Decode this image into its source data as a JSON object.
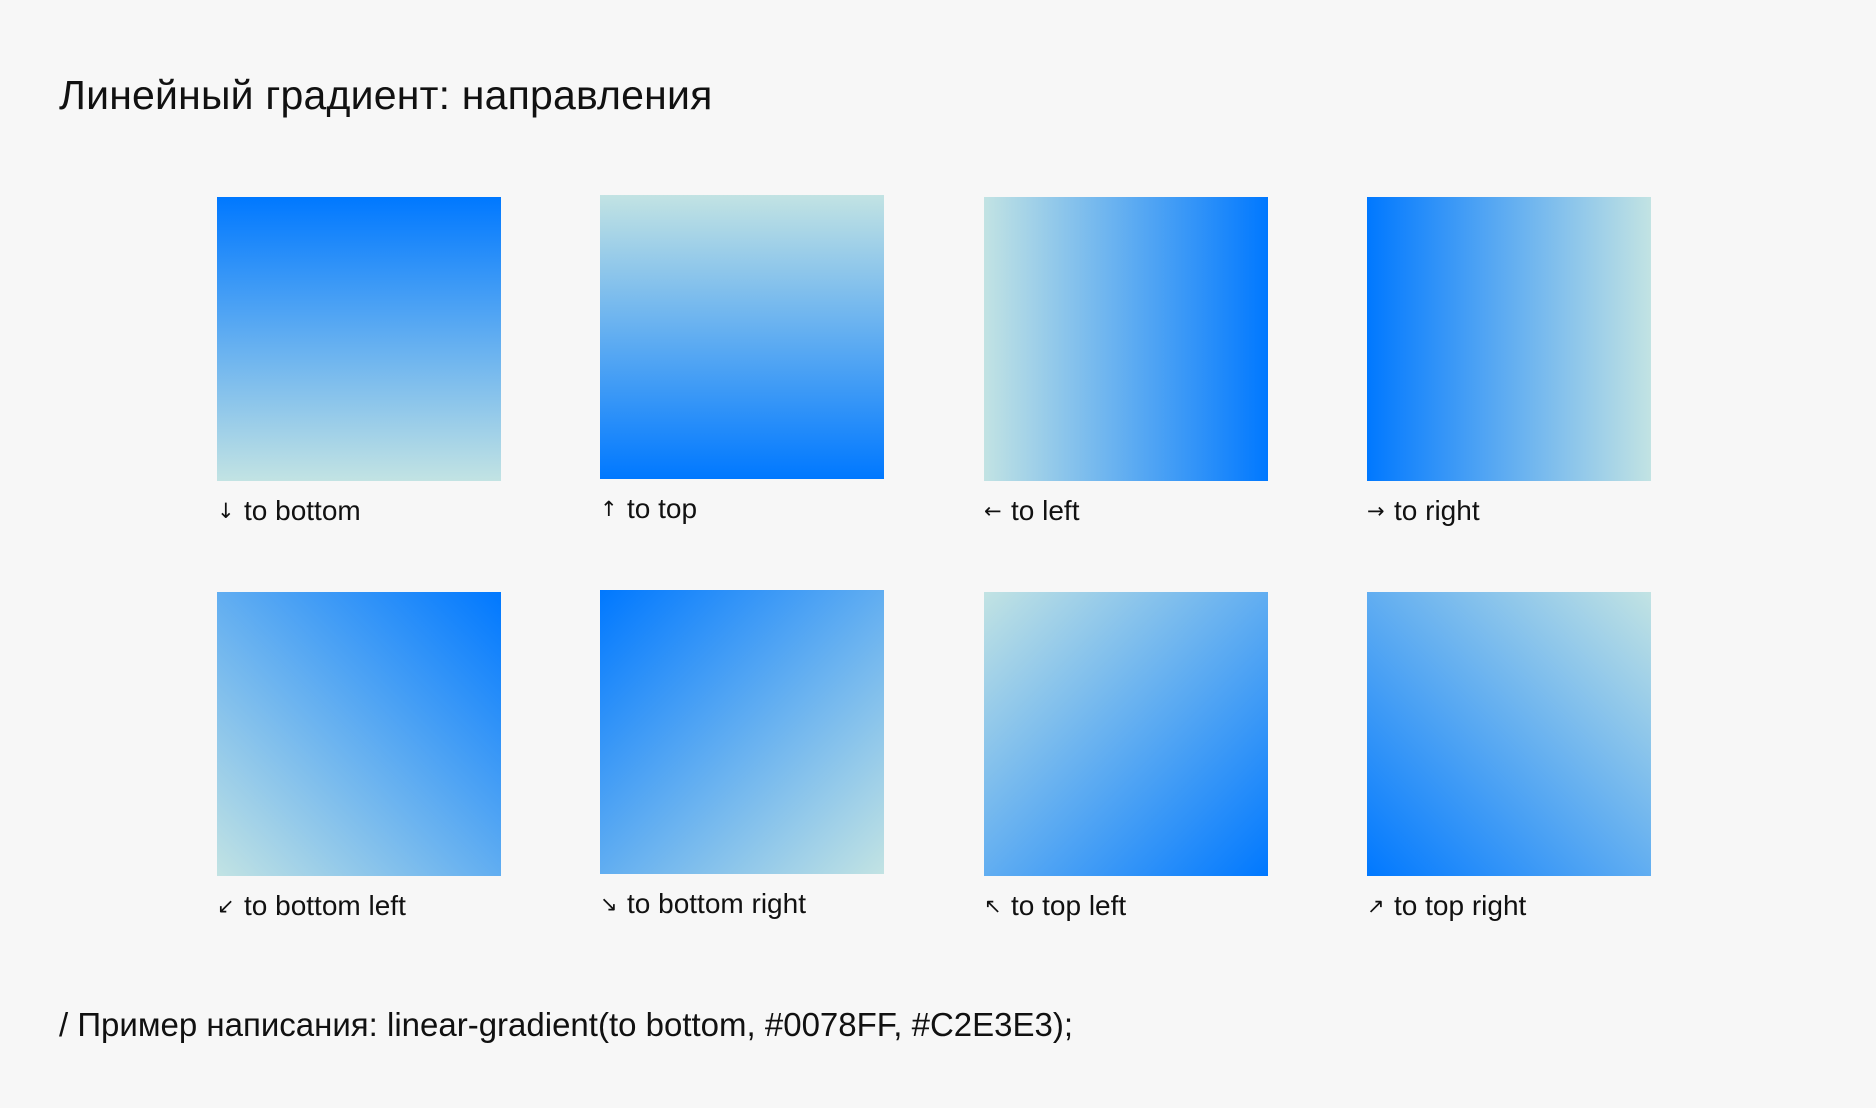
{
  "title": "Линейный градиент: направления",
  "colors": {
    "start": "#0078FF",
    "end": "#C2E3E3",
    "background": "#F7F7F7"
  },
  "examples": [
    {
      "direction": "to bottom",
      "arrow": "↓",
      "arrow_icon": "arrow-down-icon"
    },
    {
      "direction": "to top",
      "arrow": "↑",
      "arrow_icon": "arrow-up-icon"
    },
    {
      "direction": "to left",
      "arrow": "←",
      "arrow_icon": "arrow-left-icon"
    },
    {
      "direction": "to right",
      "arrow": "→",
      "arrow_icon": "arrow-right-icon"
    },
    {
      "direction": "to bottom left",
      "arrow": "↙",
      "arrow_icon": "arrow-down-left-icon"
    },
    {
      "direction": "to bottom right",
      "arrow": "↘",
      "arrow_icon": "arrow-down-right-icon"
    },
    {
      "direction": "to top left",
      "arrow": "↖",
      "arrow_icon": "arrow-up-left-icon"
    },
    {
      "direction": "to top right",
      "arrow": "↗",
      "arrow_icon": "arrow-up-right-icon"
    }
  ],
  "footer": "/ Пример написания: linear-gradient(to bottom, #0078FF, #C2E3E3);"
}
